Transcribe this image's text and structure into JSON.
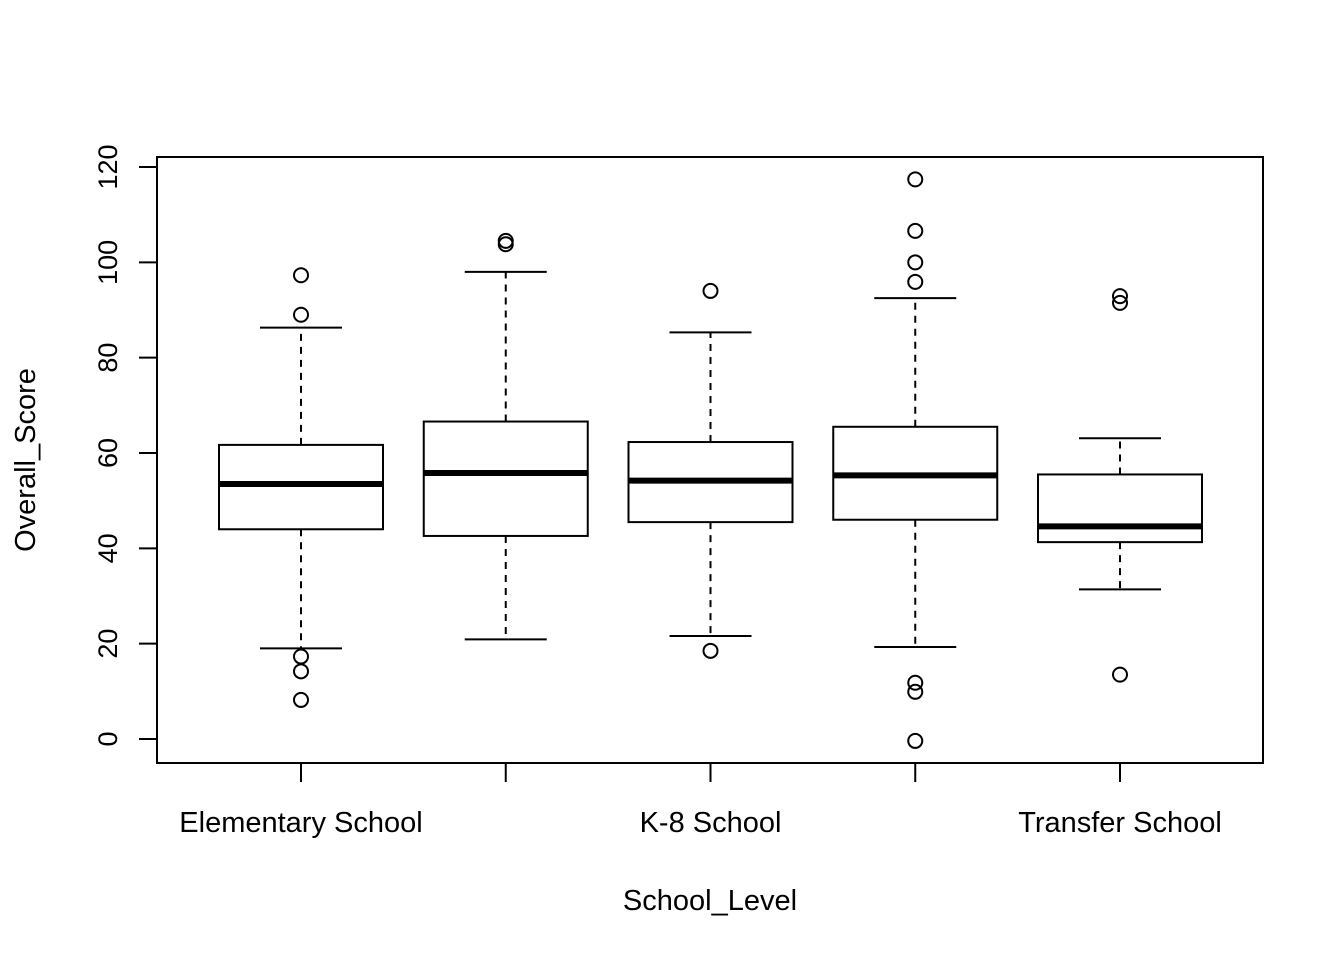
{
  "chart_data": {
    "type": "boxplot",
    "xlabel": "School_Level",
    "ylabel": "Overall_Score",
    "ylim": [
      -5,
      122
    ],
    "yticks": [
      0,
      20,
      40,
      60,
      80,
      100,
      120
    ],
    "categories": [
      "Elementary School",
      "",
      "K-8 School",
      "",
      "Transfer School"
    ],
    "boxes": [
      {
        "min": 19,
        "q1": 44,
        "median": 53.5,
        "q3": 61.7,
        "max": 86.3,
        "outliers": [
          97.3,
          89,
          17.3,
          14.2,
          8.2
        ]
      },
      {
        "min": 20.9,
        "q1": 42.6,
        "median": 55.8,
        "q3": 66.6,
        "max": 98,
        "outliers": [
          104.5,
          103.8
        ]
      },
      {
        "min": 21.6,
        "q1": 45.5,
        "median": 54.2,
        "q3": 62.3,
        "max": 85.3,
        "outliers": [
          94,
          18.5
        ]
      },
      {
        "min": 19.3,
        "q1": 46,
        "median": 55.3,
        "q3": 65.5,
        "max": 92.5,
        "outliers": [
          117.4,
          106.6,
          100,
          95.9,
          11.8,
          9.9,
          -0.4
        ]
      },
      {
        "min": 31.4,
        "q1": 41.3,
        "median": 44.6,
        "q3": 55.5,
        "max": 63.1,
        "outliers": [
          92.9,
          91.5,
          13.5
        ]
      }
    ],
    "grid": false,
    "legend": false
  }
}
